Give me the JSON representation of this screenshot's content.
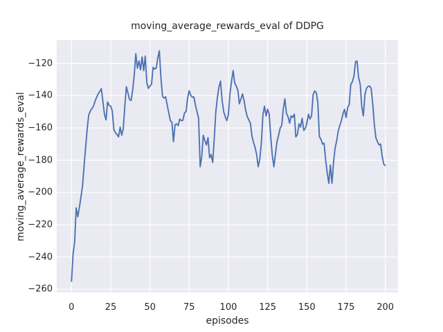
{
  "chart_data": {
    "type": "line",
    "title": "moving_average_rewards_eval of DDPG",
    "xlabel": "episodes",
    "ylabel": "moving_average_rewards_eval",
    "x_tick_labels": [
      "0",
      "25",
      "50",
      "75",
      "100",
      "125",
      "150",
      "175",
      "200"
    ],
    "x_tick_values": [
      0,
      25,
      50,
      75,
      100,
      125,
      150,
      175,
      200
    ],
    "y_tick_labels": [
      "−120",
      "−140",
      "−160",
      "−180",
      "−200",
      "−220",
      "−240",
      "−260"
    ],
    "y_tick_values": [
      -120,
      -140,
      -160,
      -180,
      -200,
      -220,
      -240,
      -260
    ],
    "xlim": [
      -9.4,
      208.1
    ],
    "ylim": [
      -262.0,
      -105.6
    ],
    "grid": true,
    "grid_color": "#ffffff",
    "plot_bg_color": "#eaeaf2",
    "line_color": "#4c72b0",
    "series": [
      {
        "name": "moving_average_rewards_eval",
        "x_start": 0,
        "x_step": 1,
        "y": [
          -255,
          -238,
          -231,
          -209.5,
          -215,
          -209.5,
          -203,
          -196,
          -184,
          -172,
          -160.5,
          -152,
          -149.5,
          -148,
          -146.5,
          -143.5,
          -141,
          -139,
          -137.5,
          -135.7,
          -143.5,
          -151.5,
          -155,
          -144,
          -146,
          -146.5,
          -149.5,
          -161,
          -163,
          -164,
          -165.5,
          -159.5,
          -164.5,
          -160.5,
          -146,
          -134.5,
          -138.5,
          -142.5,
          -143,
          -136.5,
          -127,
          -114,
          -123,
          -118.5,
          -124,
          -116,
          -124.5,
          -115.5,
          -132,
          -135.5,
          -134,
          -133,
          -122.5,
          -123.5,
          -123,
          -116.5,
          -112.2,
          -129,
          -140.5,
          -141.5,
          -140.7,
          -146,
          -150.5,
          -155.5,
          -156.5,
          -168.5,
          -158,
          -157.5,
          -158.5,
          -154.5,
          -155.5,
          -155.3,
          -150.7,
          -149.8,
          -141.5,
          -137,
          -139.8,
          -141,
          -140.8,
          -146,
          -150,
          -154,
          -184,
          -178,
          -164.5,
          -168,
          -170.5,
          -166,
          -178.5,
          -176.5,
          -181.4,
          -166,
          -150,
          -141,
          -134.5,
          -131,
          -143,
          -150,
          -153,
          -155.5,
          -151.5,
          -139,
          -131,
          -124.5,
          -132,
          -134,
          -136.5,
          -145,
          -142,
          -139,
          -143,
          -149,
          -153,
          -155,
          -157,
          -165,
          -169,
          -172,
          -176.5,
          -184,
          -179.5,
          -169,
          -152,
          -146.5,
          -152.5,
          -148.5,
          -151.5,
          -166,
          -177,
          -184,
          -176,
          -168.5,
          -164.5,
          -160,
          -158.5,
          -148,
          -142,
          -151,
          -153,
          -157,
          -152.5,
          -153.5,
          -151.5,
          -165.5,
          -164,
          -157.5,
          -159.5,
          -154,
          -161.5,
          -160.5,
          -157,
          -151.5,
          -154.5,
          -152.5,
          -139.5,
          -137.1,
          -138,
          -144.5,
          -165.5,
          -167,
          -170,
          -169.5,
          -180,
          -188,
          -194.3,
          -183,
          -194.3,
          -181.5,
          -172.5,
          -168,
          -162,
          -158.5,
          -155.5,
          -151.5,
          -148.5,
          -153.5,
          -147.5,
          -145.5,
          -133,
          -131.5,
          -128,
          -119,
          -118.6,
          -129,
          -133,
          -146.5,
          -152.5,
          -139.5,
          -135.5,
          -134.3,
          -134,
          -135.5,
          -145,
          -158,
          -166,
          -168.5,
          -170.5,
          -170,
          -177.5,
          -182.5,
          -183.3
        ]
      }
    ]
  }
}
